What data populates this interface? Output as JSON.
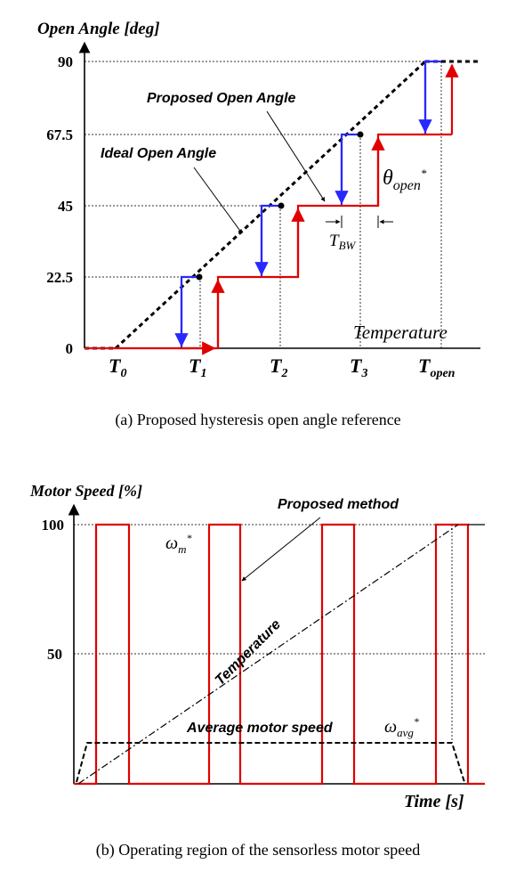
{
  "chart_data": [
    {
      "type": "line",
      "ylabel": "Open Angle [deg]",
      "xlabel": "Temperature",
      "caption": "(a) Proposed hysteresis open angle reference",
      "yticks": [
        "0",
        "22.5",
        "45",
        "67.5",
        "90"
      ],
      "ylim": [
        0,
        90
      ],
      "xtick_labels": [
        {
          "main": "T",
          "sub": "0"
        },
        {
          "main": "T",
          "sub": "1"
        },
        {
          "main": "T",
          "sub": "2"
        },
        {
          "main": "T",
          "sub": "3"
        },
        {
          "main": "T",
          "sub": "open"
        }
      ],
      "grid": "dotted",
      "series": [
        {
          "name": "Ideal Open Angle",
          "style": "dashed",
          "color": "#000000",
          "x": [
            "T0",
            "Topen"
          ],
          "y": [
            0,
            90
          ]
        },
        {
          "name": "Proposed Open Angle",
          "style": "solid",
          "color": "#e00000",
          "x": [
            "T1+TBW",
            "T1+TBW",
            "T2+TBW",
            "T2+TBW",
            "T3+TBW",
            "T3+TBW",
            "Topen+TBW"
          ],
          "y": [
            0,
            22.5,
            22.5,
            45,
            45,
            67.5,
            67.5
          ]
        }
      ],
      "blue_steps": [
        22.5,
        45,
        67.5,
        90
      ],
      "annotations": {
        "ideal": "Ideal Open Angle",
        "proposed": "Proposed Open Angle",
        "theta": {
          "main": "θ",
          "sub": "open",
          "sup": "*"
        },
        "tbw": {
          "main": "T",
          "sub": "BW"
        }
      },
      "colors": {
        "rising": "#e00000",
        "falling": "#2828ff",
        "ideal": "#000000"
      }
    },
    {
      "type": "line",
      "ylabel": "Motor Speed [%]",
      "xlabel": "Time [s]",
      "caption": "(b) Operating region of the sensorless motor speed",
      "yticks": [
        "50",
        "100"
      ],
      "ylim": [
        0,
        100
      ],
      "grid": "dotted",
      "series": [
        {
          "name": "Proposed method",
          "style": "solid",
          "color": "#e00000",
          "pulses": [
            [
              0.06,
              0.15
            ],
            [
              0.36,
              0.45
            ],
            [
              0.66,
              0.75
            ],
            [
              0.96,
              1.05
            ]
          ],
          "y_on": 100,
          "y_off": 0
        },
        {
          "name": "Average motor speed",
          "style": "dashed",
          "color": "#000000",
          "level": 16
        },
        {
          "name": "Temperature",
          "style": "dashdot",
          "color": "#000000"
        }
      ],
      "annotations": {
        "proposed": "Proposed method",
        "average": "Average motor speed",
        "temperature": "Temperature",
        "omega_m": {
          "main": "ω",
          "sub": "m",
          "sup": "*"
        },
        "omega_avg": {
          "main": "ω",
          "sub": "avg",
          "sup": "*"
        }
      }
    }
  ]
}
